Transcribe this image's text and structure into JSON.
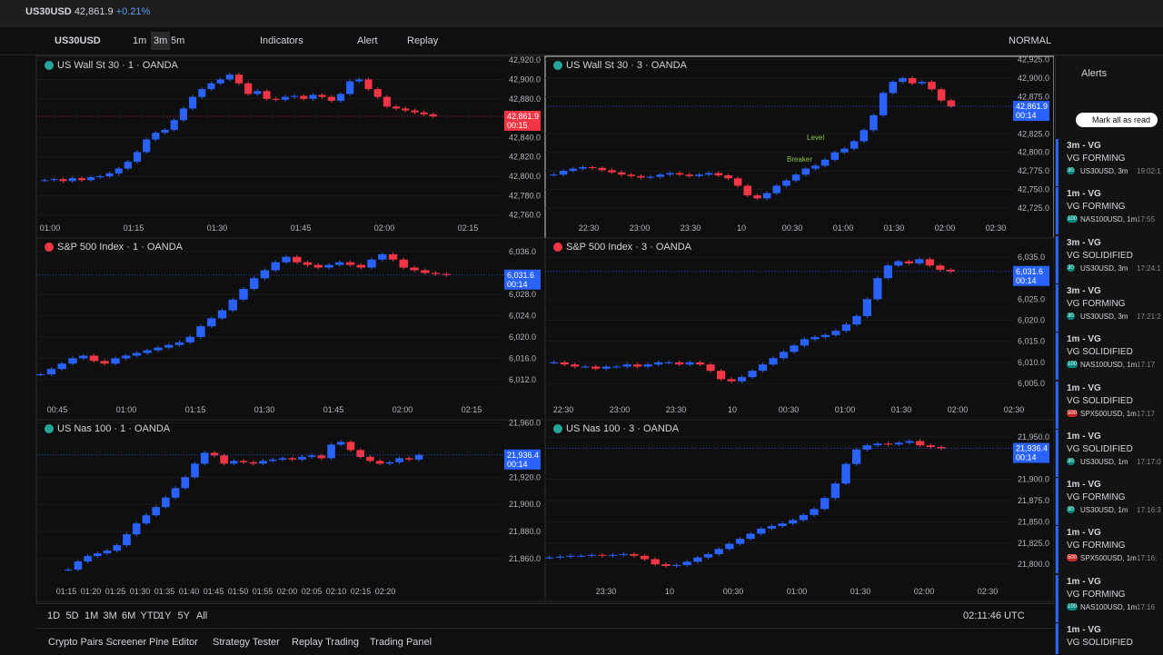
{
  "tab": {
    "symbol": "US30USD",
    "price": "42,861.9",
    "change": "+0.21%"
  },
  "toolbar": {
    "symbol": "US30USD",
    "intervals": [
      "1m",
      "3m",
      "5m"
    ],
    "indicators": "Indicators",
    "alert": "Alert",
    "replay": "Replay",
    "layout": "NORMAL"
  },
  "charts": [
    {
      "title": "US Wall St 30 · 1 · OANDA",
      "ylim": [
        42755,
        42922
      ],
      "yticks": [
        {
          "value": 42920,
          "label": "42,920.0"
        },
        {
          "value": 42900,
          "label": "42,900.0"
        },
        {
          "value": 42880,
          "label": "42,880.0"
        },
        {
          "value": 42840,
          "label": "42,840.0"
        },
        {
          "value": 42820,
          "label": "42,820.0"
        },
        {
          "value": 42800,
          "label": "42,800.0"
        },
        {
          "value": 42780,
          "label": "42,780.0"
        },
        {
          "value": 42760,
          "label": "42,760.0"
        }
      ],
      "xticks": [
        "01:00",
        "01:15",
        "01:30",
        "01:45",
        "02:00",
        "02:15"
      ],
      "price_label": "42,861.9",
      "countdown": "00:15",
      "price_color": "#f23645",
      "closes": [
        42796,
        42797,
        42795,
        42798,
        42796,
        42799,
        42800,
        42803,
        42808,
        42815,
        42825,
        42838,
        42845,
        42848,
        42858,
        42870,
        42882,
        42890,
        42896,
        42900,
        42905,
        42896,
        42885,
        42888,
        42880,
        42879,
        42882,
        42883,
        42880,
        42884,
        42882,
        42878,
        42885,
        42898,
        42900,
        42890,
        42882,
        42872,
        42870,
        42868,
        42866,
        42864,
        42862
      ]
    },
    {
      "title": "US Wall St 30 · 3 · OANDA",
      "ylim": [
        42709,
        42927
      ],
      "yticks": [
        {
          "value": 42925,
          "label": "42,925.0"
        },
        {
          "value": 42900,
          "label": "42,900.0"
        },
        {
          "value": 42875,
          "label": "42,875.0"
        },
        {
          "value": 42825,
          "label": "42,825.0"
        },
        {
          "value": 42800,
          "label": "42,800.0"
        },
        {
          "value": 42775,
          "label": "42,775.0"
        },
        {
          "value": 42750,
          "label": "42,750.0"
        },
        {
          "value": 42725,
          "label": "42,725.0"
        }
      ],
      "xticks": [
        "22:30",
        "23:00",
        "23:30",
        "10",
        "00:30",
        "01:00",
        "01:30",
        "02:00",
        "02:30"
      ],
      "price_label": "42,861.9",
      "countdown": "00:14",
      "price_color": "#2962ff",
      "annotations": [
        "Level",
        "Breaker"
      ],
      "closes": [
        42770,
        42775,
        42778,
        42780,
        42779,
        42776,
        42773,
        42770,
        42768,
        42766,
        42767,
        42770,
        42772,
        42770,
        42768,
        42770,
        42772,
        42769,
        42765,
        42755,
        42742,
        42738,
        42745,
        42755,
        42762,
        42770,
        42778,
        42782,
        42790,
        42800,
        42805,
        42815,
        42830,
        42850,
        42880,
        42895,
        42900,
        42893,
        42895,
        42885,
        42870,
        42862
      ]
    },
    {
      "title": "S&P 500 Index · 1 · OANDA",
      "ylim": [
        6007.9,
        6038.2
      ],
      "yticks": [
        {
          "value": 6036,
          "label": "6,036.0"
        },
        {
          "value": 6028,
          "label": "6,028.0"
        },
        {
          "value": 6024,
          "label": "6,024.0"
        },
        {
          "value": 6020,
          "label": "6,020.0"
        },
        {
          "value": 6016,
          "label": "6,016.0"
        },
        {
          "value": 6012,
          "label": "6,012.0"
        }
      ],
      "xticks": [
        "00:45",
        "01:00",
        "01:15",
        "01:30",
        "01:45",
        "02:00",
        "02:15"
      ],
      "price_label": "6,031.6",
      "countdown": "00:14",
      "price_color": "#2962ff",
      "closes": [
        6013,
        6014,
        6015,
        6016,
        6016.5,
        6015.5,
        6015,
        6016,
        6016.5,
        6017,
        6017.5,
        6018,
        6018.5,
        6019,
        6020,
        6022,
        6023.5,
        6025,
        6027,
        6029,
        6031,
        6032.5,
        6034,
        6035,
        6034,
        6033.5,
        6033,
        6033.5,
        6034,
        6033.5,
        6033,
        6034.5,
        6035.5,
        6034.5,
        6033,
        6032.5,
        6032,
        6031.8,
        6031.6
      ]
    },
    {
      "title": "S&P 500 Index · 3 · OANDA",
      "ylim": [
        6000.7,
        6039.1
      ],
      "yticks": [
        {
          "value": 6035,
          "label": "6,035.0"
        },
        {
          "value": 6025,
          "label": "6,025.0"
        },
        {
          "value": 6020,
          "label": "6,020.0"
        },
        {
          "value": 6015,
          "label": "6,015.0"
        },
        {
          "value": 6010,
          "label": "6,010.0"
        },
        {
          "value": 6005,
          "label": "6,005.0"
        }
      ],
      "xticks": [
        "22:30",
        "23:00",
        "23:30",
        "10",
        "00:30",
        "01:00",
        "01:30",
        "02:00",
        "02:30"
      ],
      "price_label": "6,031.6",
      "countdown": "00:14",
      "price_color": "#2962ff",
      "closes": [
        6010,
        6009.5,
        6009,
        6009,
        6008.5,
        6009,
        6009,
        6009.5,
        6009,
        6009.5,
        6010,
        6010,
        6009.5,
        6010,
        6009.5,
        6008,
        6006,
        6005.5,
        6006.5,
        6008,
        6009.5,
        6011,
        6012.5,
        6014,
        6015.5,
        6016,
        6016.5,
        6017.5,
        6019,
        6021,
        6025,
        6030,
        6033,
        6034,
        6033.5,
        6034.5,
        6033,
        6032,
        6031.6
      ]
    },
    {
      "title": "US Nas 100 · 1 · OANDA",
      "ylim": [
        21842,
        21961
      ],
      "yticks": [
        {
          "value": 21960,
          "label": "21,960.0"
        },
        {
          "value": 21920,
          "label": "21,920.0"
        },
        {
          "value": 21900,
          "label": "21,900.0"
        },
        {
          "value": 21880,
          "label": "21,880.0"
        },
        {
          "value": 21860,
          "label": "21,860.0"
        }
      ],
      "xticks": [
        "01:15",
        "01:20",
        "01:25",
        "01:30",
        "01:35",
        "01:40",
        "01:45",
        "01:50",
        "01:55",
        "02:00",
        "02:05",
        "02:10",
        "02:15",
        "02:20"
      ],
      "price_label": "21,936.4",
      "countdown": "00:14",
      "price_color": "#2962ff",
      "closes": [
        21852,
        21858,
        21862,
        21864,
        21866,
        21870,
        21878,
        21886,
        21892,
        21898,
        21905,
        21912,
        21920,
        21930,
        21938,
        21936,
        21930,
        21932,
        21931,
        21930,
        21932,
        21933,
        21934,
        21933,
        21935,
        21936,
        21934,
        21944,
        21946,
        21940,
        21935,
        21932,
        21930,
        21931,
        21934,
        21933,
        21936.4
      ]
    },
    {
      "title": "US Nas 100 · 3 · OANDA",
      "ylim": [
        21777.7,
        21968
      ],
      "yticks": [
        {
          "value": 21950,
          "label": "21,950.0"
        },
        {
          "value": 21900,
          "label": "21,900.0"
        },
        {
          "value": 21875,
          "label": "21,875.0"
        },
        {
          "value": 21850,
          "label": "21,850.0"
        },
        {
          "value": 21825,
          "label": "21,825.0"
        },
        {
          "value": 21800,
          "label": "21,800.0"
        }
      ],
      "xticks": [
        "23:30",
        "10",
        "00:30",
        "01:00",
        "01:30",
        "02:00",
        "02:30"
      ],
      "price_label": "21,936.4",
      "countdown": "00:14",
      "price_color": "#2962ff",
      "closes": [
        21808,
        21809,
        21810,
        21810,
        21811,
        21810,
        21811,
        21812,
        21810,
        21806,
        21800,
        21798,
        21799,
        21803,
        21808,
        21812,
        21818,
        21824,
        21830,
        21836,
        21842,
        21845,
        21848,
        21852,
        21858,
        21865,
        21878,
        21895,
        21918,
        21935,
        21940,
        21942,
        21941,
        21943,
        21945,
        21940,
        21938,
        21936.4
      ]
    }
  ],
  "timeframes": [
    "1D",
    "5D",
    "1M",
    "3M",
    "6M",
    "YTD",
    "1Y",
    "5Y",
    "All"
  ],
  "clock": "02:11:46 UTC",
  "bottom_tabs": [
    "Crypto Pairs Screener",
    "Pine Editor",
    "Strategy Tester",
    "Replay Trading",
    "Trading Panel"
  ],
  "sidebar": {
    "tab": "Alerts",
    "mark_read": "Mark all as read",
    "alerts": [
      {
        "title": "3m - VG",
        "status": "VG FORMING",
        "badge": "30",
        "symbol": "US30USD, 3m",
        "time": "19:02:1"
      },
      {
        "title": "1m - VG",
        "status": "VG FORMING",
        "badge": "100",
        "symbol": "NAS100USD, 1m",
        "time": "17:55"
      },
      {
        "title": "3m - VG",
        "status": "VG SOLIDIFIED",
        "badge": "30",
        "symbol": "US30USD, 3m",
        "time": "17:24:1"
      },
      {
        "title": "3m - VG",
        "status": "VG FORMING",
        "badge": "30",
        "symbol": "US30USD, 3m",
        "time": "17:21:2"
      },
      {
        "title": "1m - VG",
        "status": "VG SOLIDIFIED",
        "badge": "100",
        "symbol": "NAS100USD, 1m",
        "time": "17:17"
      },
      {
        "title": "1m - VG",
        "status": "VG SOLIDIFIED",
        "badge": "500",
        "symbol": "SPX500USD, 1m",
        "time": "17:17"
      },
      {
        "title": "1m - VG",
        "status": "VG SOLIDIFIED",
        "badge": "30",
        "symbol": "US30USD, 1m",
        "time": "17:17:0"
      },
      {
        "title": "1m - VG",
        "status": "VG FORMING",
        "badge": "30",
        "symbol": "US30USD, 1m",
        "time": "17:16:3"
      },
      {
        "title": "1m - VG",
        "status": "VG FORMING",
        "badge": "500",
        "symbol": "SPX500USD, 1m",
        "time": "17:16:"
      },
      {
        "title": "1m - VG",
        "status": "VG FORMING",
        "badge": "100",
        "symbol": "NAS100USD, 1m",
        "time": "17:16"
      },
      {
        "title": "1m - VG",
        "status": "VG SOLIDIFIED"
      }
    ]
  }
}
